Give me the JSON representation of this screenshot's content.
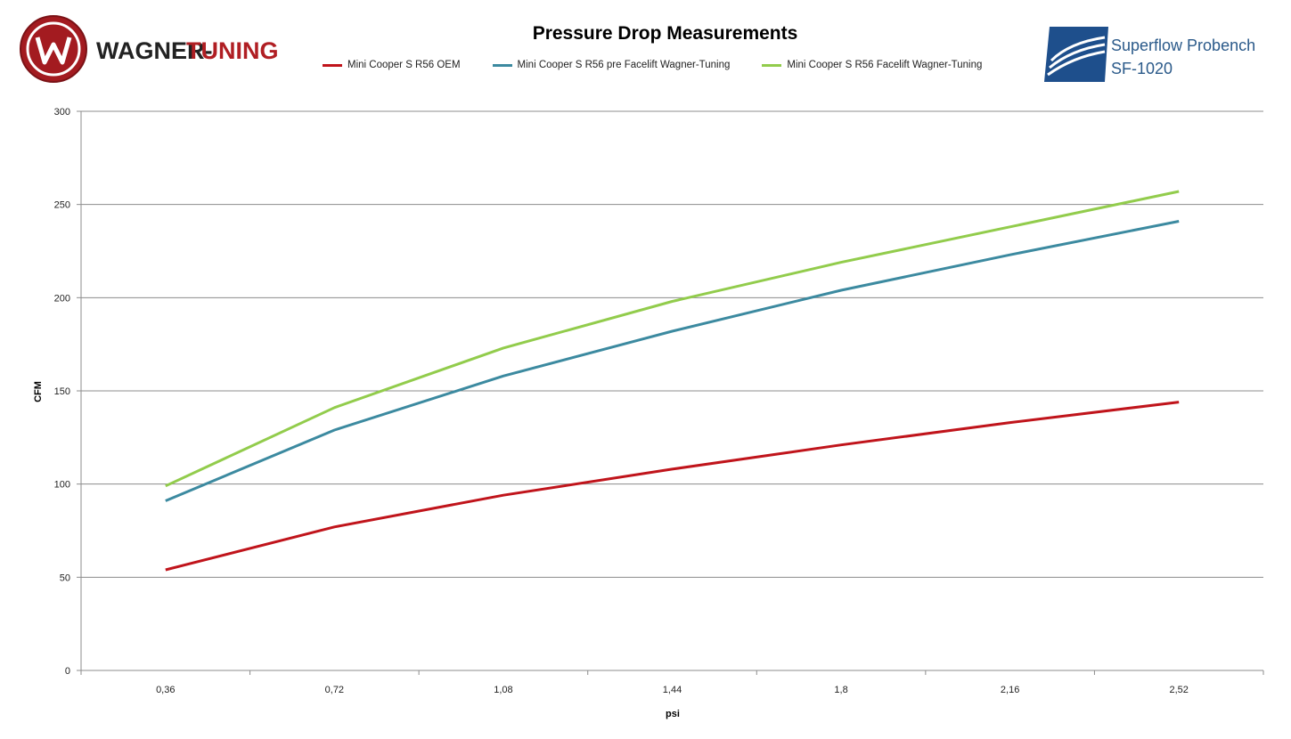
{
  "brand": {
    "left_logo_text_1": "WAGNER-",
    "left_logo_text_2": "TUNING",
    "right_logo_line_1": "Superflow Probench",
    "right_logo_line_2": "SF-1020"
  },
  "colors": {
    "brand_red": "#b01e23",
    "brand_blue": "#1e4f8c"
  },
  "chart_data": {
    "type": "line",
    "title": "Pressure Drop Measurements",
    "xlabel": "psi",
    "ylabel": "CFM",
    "categories": [
      "0,36",
      "0,72",
      "1,08",
      "1,44",
      "1,8",
      "2,16",
      "2,52"
    ],
    "ylim": [
      0,
      300
    ],
    "yticks": [
      0,
      50,
      100,
      150,
      200,
      250,
      300
    ],
    "grid": true,
    "legend_position": "top",
    "series": [
      {
        "name": "Mini Cooper S R56 OEM",
        "color": "#c0141b",
        "values": [
          54,
          77,
          94,
          108,
          121,
          133,
          144
        ]
      },
      {
        "name": "Mini Cooper S R56 pre Facelift Wagner-Tuning",
        "color": "#3c8aa0",
        "values": [
          91,
          129,
          158,
          182,
          204,
          223,
          241
        ]
      },
      {
        "name": "Mini Cooper S R56 Facelift Wagner-Tuning",
        "color": "#92cc4c",
        "values": [
          99,
          141,
          173,
          198,
          219,
          238,
          257
        ]
      }
    ]
  }
}
